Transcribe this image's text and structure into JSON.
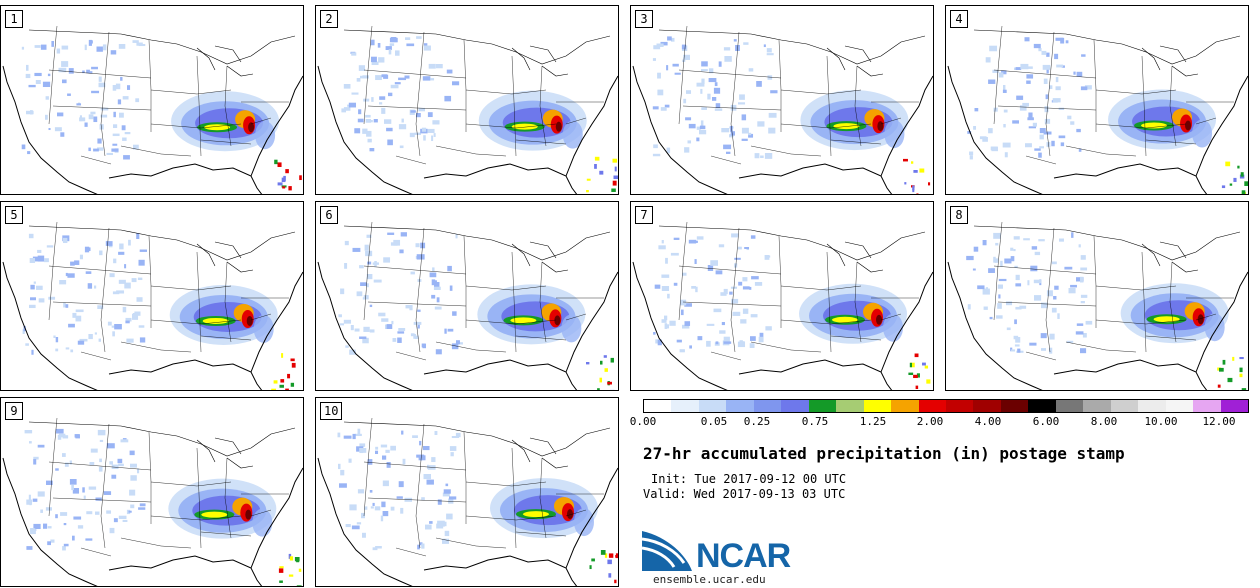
{
  "panels": [
    {
      "label": "1"
    },
    {
      "label": "2"
    },
    {
      "label": "3"
    },
    {
      "label": "4"
    },
    {
      "label": "5"
    },
    {
      "label": "6"
    },
    {
      "label": "7"
    },
    {
      "label": "8"
    },
    {
      "label": "9"
    },
    {
      "label": "10"
    }
  ],
  "colorbar": {
    "colors": [
      "#ffffff",
      "#e6f0fb",
      "#c8dcf7",
      "#99b4f5",
      "#7f96ee",
      "#6e78eb",
      "#149a28",
      "#a6cc73",
      "#ffff00",
      "#f5a300",
      "#e40000",
      "#c20000",
      "#a00000",
      "#6b0000",
      "#000000",
      "#777777",
      "#aaaaaa",
      "#cfcfcf",
      "#ececec",
      "#f5f5f5",
      "#e6a6f2",
      "#a020d6"
    ],
    "tick_labels": [
      "0.00",
      "0.05",
      "0.25",
      "0.75",
      "1.25",
      "2.00",
      "4.00",
      "6.00",
      "8.00",
      "10.00",
      "12.00"
    ]
  },
  "title": "27-hr accumulated precipitation (in) postage stamp",
  "init": "Init: Tue 2017-09-12 00 UTC",
  "valid": "Valid: Wed 2017-09-13 03 UTC",
  "logo": {
    "text": "NCAR",
    "url": "ensemble.ucar.edu"
  },
  "colors": {
    "accent": "#1565a8",
    "precip_light": "#99b4f5",
    "precip_heavy": "#c20000"
  }
}
